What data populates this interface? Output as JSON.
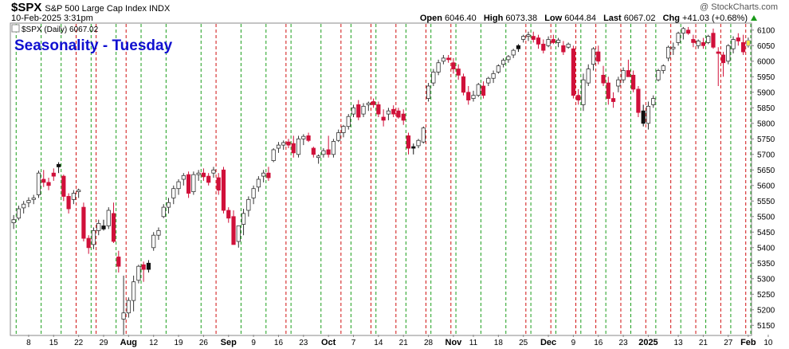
{
  "header": {
    "symbol": "$SPX",
    "name": "S&P 500 Large Cap Index INDX",
    "date": "10-Feb-2025 3:31pm",
    "brand": "@ StockCharts.com",
    "open_label": "Open",
    "open": "6046.40",
    "high_label": "High",
    "high": "6073.38",
    "low_label": "Low",
    "low": "6044.84",
    "last_label": "Last",
    "last": "6067.02",
    "chg_label": "Chg",
    "chg": "+41.03 (+0.68%)"
  },
  "legend": {
    "label": "$SPX (Daily) 6067.02"
  },
  "chart_data": {
    "type": "candlestick",
    "title": "Seasonality - Tuesday",
    "ylim": [
      5120,
      6120
    ],
    "y_ticks": [
      5150,
      5200,
      5250,
      5300,
      5350,
      5400,
      5450,
      5500,
      5550,
      5600,
      5650,
      5700,
      5750,
      5800,
      5850,
      5900,
      5950,
      6000,
      6050,
      6100
    ],
    "x_ticks": [
      "8",
      "15",
      "22",
      "29",
      "Aug",
      "12",
      "19",
      "26",
      "Sep",
      "9",
      "16",
      "23",
      "Oct",
      "7",
      "14",
      "21",
      "28",
      "Nov",
      "11",
      "18",
      "25",
      "Dec",
      "9",
      "16",
      "23",
      "2025",
      "13",
      "21",
      "27",
      "Feb",
      "10"
    ],
    "bold_ticks": [
      "Aug",
      "Sep",
      "Oct",
      "Nov",
      "Dec",
      "2025",
      "Feb"
    ],
    "green_lines": "Tuesdays",
    "red_lines": "Mondays",
    "colors": {
      "up": "#ffffff",
      "down": "#d0103a",
      "black": "#111111",
      "highlight": "#f5e94a",
      "green_line": "#1b9e1b",
      "red_line": "#d01010",
      "title": "#1010d0"
    },
    "candles": [
      [
        5480,
        5505,
        5460,
        5490
      ],
      [
        5495,
        5535,
        5488,
        5525
      ],
      [
        5528,
        5550,
        5510,
        5540
      ],
      [
        5545,
        5562,
        5530,
        5552
      ],
      [
        5555,
        5570,
        5540,
        5560
      ],
      [
        5570,
        5648,
        5560,
        5640
      ],
      [
        5620,
        5650,
        5595,
        5610
      ],
      [
        5610,
        5625,
        5585,
        5600
      ],
      [
        5640,
        5655,
        5615,
        5630
      ],
      [
        5660,
        5675,
        5640,
        5668
      ],
      [
        5630,
        5635,
        5550,
        5565
      ],
      [
        5565,
        5575,
        5510,
        5525
      ],
      [
        5555,
        5585,
        5540,
        5575
      ],
      [
        5580,
        5590,
        5560,
        5585
      ],
      [
        5530,
        5545,
        5420,
        5430
      ],
      [
        5430,
        5440,
        5380,
        5400
      ],
      [
        5410,
        5465,
        5395,
        5455
      ],
      [
        5455,
        5490,
        5440,
        5478
      ],
      [
        5470,
        5490,
        5455,
        5460
      ],
      [
        5470,
        5530,
        5460,
        5520
      ],
      [
        5510,
        5545,
        5415,
        5420
      ],
      [
        5370,
        5390,
        5320,
        5340
      ],
      [
        5170,
        5310,
        5120,
        5190
      ],
      [
        5190,
        5240,
        5175,
        5230
      ],
      [
        5230,
        5310,
        5195,
        5290
      ],
      [
        5295,
        5345,
        5285,
        5340
      ],
      [
        5345,
        5355,
        5290,
        5330
      ],
      [
        5330,
        5360,
        5320,
        5350
      ],
      [
        5400,
        5450,
        5390,
        5440
      ],
      [
        5440,
        5465,
        5425,
        5455
      ],
      [
        5500,
        5540,
        5495,
        5530
      ],
      [
        5530,
        5560,
        5510,
        5545
      ],
      [
        5560,
        5600,
        5540,
        5590
      ],
      [
        5590,
        5620,
        5570,
        5612
      ],
      [
        5620,
        5640,
        5600,
        5632
      ],
      [
        5635,
        5645,
        5560,
        5575
      ],
      [
        5580,
        5645,
        5570,
        5635
      ],
      [
        5635,
        5650,
        5615,
        5640
      ],
      [
        5640,
        5655,
        5615,
        5628
      ],
      [
        5630,
        5640,
        5600,
        5610
      ],
      [
        5640,
        5660,
        5625,
        5650
      ],
      [
        5625,
        5640,
        5570,
        5585
      ],
      [
        5650,
        5660,
        5510,
        5520
      ],
      [
        5520,
        5530,
        5480,
        5495
      ],
      [
        5500,
        5520,
        5420,
        5410
      ],
      [
        5420,
        5460,
        5400,
        5470
      ],
      [
        5475,
        5525,
        5440,
        5510
      ],
      [
        5520,
        5565,
        5500,
        5555
      ],
      [
        5560,
        5600,
        5540,
        5590
      ],
      [
        5595,
        5630,
        5580,
        5620
      ],
      [
        5630,
        5650,
        5610,
        5640
      ],
      [
        5640,
        5660,
        5615,
        5625
      ],
      [
        5680,
        5720,
        5675,
        5715
      ],
      [
        5720,
        5740,
        5705,
        5730
      ],
      [
        5730,
        5745,
        5715,
        5738
      ],
      [
        5740,
        5750,
        5720,
        5730
      ],
      [
        5735,
        5760,
        5690,
        5705
      ],
      [
        5700,
        5760,
        5690,
        5750
      ],
      [
        5750,
        5765,
        5730,
        5758
      ],
      [
        5760,
        5770,
        5740,
        5745
      ],
      [
        5720,
        5725,
        5690,
        5700
      ],
      [
        5690,
        5700,
        5670,
        5695
      ],
      [
        5700,
        5720,
        5690,
        5712
      ],
      [
        5715,
        5760,
        5690,
        5700
      ],
      [
        5700,
        5750,
        5690,
        5742
      ],
      [
        5745,
        5780,
        5740,
        5770
      ],
      [
        5770,
        5795,
        5755,
        5790
      ],
      [
        5790,
        5830,
        5780,
        5822
      ],
      [
        5830,
        5860,
        5820,
        5850
      ],
      [
        5860,
        5875,
        5810,
        5820
      ],
      [
        5830,
        5865,
        5820,
        5855
      ],
      [
        5860,
        5870,
        5840,
        5865
      ],
      [
        5870,
        5880,
        5850,
        5860
      ],
      [
        5860,
        5870,
        5820,
        5830
      ],
      [
        5820,
        5845,
        5790,
        5810
      ],
      [
        5830,
        5850,
        5810,
        5840
      ],
      [
        5845,
        5858,
        5820,
        5830
      ],
      [
        5840,
        5850,
        5815,
        5820
      ],
      [
        5830,
        5845,
        5795,
        5810
      ],
      [
        5760,
        5770,
        5700,
        5720
      ],
      [
        5720,
        5735,
        5700,
        5725
      ],
      [
        5728,
        5750,
        5720,
        5745
      ],
      [
        5740,
        5790,
        5735,
        5785
      ],
      [
        5880,
        5930,
        5870,
        5920
      ],
      [
        5930,
        5975,
        5920,
        5965
      ],
      [
        5965,
        6005,
        5955,
        5995
      ],
      [
        6000,
        6020,
        5990,
        6010
      ],
      [
        6010,
        6020,
        5995,
        6005
      ],
      [
        5995,
        6010,
        5960,
        5975
      ],
      [
        5975,
        5990,
        5940,
        5955
      ],
      [
        5950,
        5960,
        5890,
        5900
      ],
      [
        5900,
        5920,
        5860,
        5875
      ],
      [
        5880,
        5905,
        5870,
        5890
      ],
      [
        5890,
        5930,
        5885,
        5925
      ],
      [
        5920,
        5935,
        5880,
        5890
      ],
      [
        5930,
        5950,
        5920,
        5945
      ],
      [
        5945,
        5970,
        5930,
        5960
      ],
      [
        5965,
        5990,
        5960,
        5985
      ],
      [
        5990,
        6010,
        5980,
        6003
      ],
      [
        6005,
        6020,
        5995,
        6015
      ],
      [
        6020,
        6040,
        6010,
        6035
      ],
      [
        6040,
        6055,
        6030,
        6050
      ],
      [
        6070,
        6085,
        6060,
        6080
      ],
      [
        6080,
        6095,
        6065,
        6085
      ],
      [
        6080,
        6095,
        6060,
        6070
      ],
      [
        6075,
        6085,
        6040,
        6055
      ],
      [
        6055,
        6070,
        6025,
        6035
      ],
      [
        6050,
        6080,
        6045,
        6070
      ],
      [
        6070,
        6085,
        6055,
        6060
      ],
      [
        6060,
        6075,
        6045,
        6068
      ],
      [
        6050,
        6065,
        6020,
        6030
      ],
      [
        6045,
        6060,
        6040,
        6055
      ],
      [
        6040,
        6050,
        5880,
        5890
      ],
      [
        5890,
        5910,
        5860,
        5875
      ],
      [
        5860,
        5960,
        5840,
        5940
      ],
      [
        5930,
        5990,
        5920,
        5975
      ],
      [
        5990,
        6045,
        5970,
        6040
      ],
      [
        6030,
        6050,
        5990,
        6000
      ],
      [
        5955,
        5985,
        5920,
        5930
      ],
      [
        5930,
        5950,
        5860,
        5880
      ],
      [
        5880,
        5900,
        5850,
        5870
      ],
      [
        5920,
        5950,
        5900,
        5940
      ],
      [
        5940,
        5980,
        5930,
        5970
      ],
      [
        5970,
        6005,
        5960,
        5950
      ],
      [
        5955,
        5970,
        5900,
        5910
      ],
      [
        5910,
        5920,
        5820,
        5835
      ],
      [
        5840,
        5860,
        5790,
        5800
      ],
      [
        5800,
        5870,
        5780,
        5855
      ],
      [
        5860,
        5890,
        5850,
        5880
      ],
      [
        5940,
        5975,
        5935,
        5970
      ],
      [
        5970,
        5990,
        5960,
        5985
      ],
      [
        6010,
        6050,
        6000,
        6045
      ],
      [
        6040,
        6060,
        6020,
        6045
      ],
      [
        6060,
        6095,
        6050,
        6090
      ],
      [
        6090,
        6110,
        6070,
        6105
      ],
      [
        6100,
        6110,
        6085,
        6090
      ],
      [
        6070,
        6085,
        6045,
        6060
      ],
      [
        6050,
        6070,
        6040,
        6065
      ],
      [
        6060,
        6075,
        6040,
        6050
      ],
      [
        6060,
        6085,
        6055,
        6080
      ],
      [
        6090,
        6105,
        6040,
        6045
      ],
      [
        6030,
        6045,
        5920,
        6025
      ],
      [
        6020,
        6030,
        5950,
        5995
      ],
      [
        6000,
        6055,
        5990,
        6050
      ],
      [
        6040,
        6080,
        6025,
        6070
      ],
      [
        6075,
        6090,
        6050,
        6065
      ],
      [
        6060,
        6085,
        6020,
        6030
      ],
      [
        6050,
        6076,
        6044,
        6067
      ]
    ],
    "black_candles": [
      9,
      18,
      27,
      80,
      101,
      126
    ],
    "green_idx": [
      1,
      6,
      10,
      16,
      21,
      26,
      31,
      38,
      46,
      51,
      56,
      62,
      68,
      73,
      79,
      84,
      89,
      94,
      99,
      104,
      109,
      114,
      119,
      124,
      129,
      134,
      139,
      144,
      148
    ],
    "red_idx": [
      13,
      17,
      23,
      41,
      55,
      66,
      72,
      77,
      83,
      88,
      103,
      108,
      113,
      117,
      122,
      127,
      132,
      137,
      142,
      147
    ],
    "x_tick_idx": [
      3,
      8,
      13,
      18,
      23,
      28,
      33,
      38,
      43,
      48,
      53,
      58,
      63,
      68,
      73,
      78,
      83,
      88,
      92,
      97,
      102,
      107,
      112,
      117,
      122,
      127,
      133,
      138,
      143,
      147,
      151
    ]
  }
}
